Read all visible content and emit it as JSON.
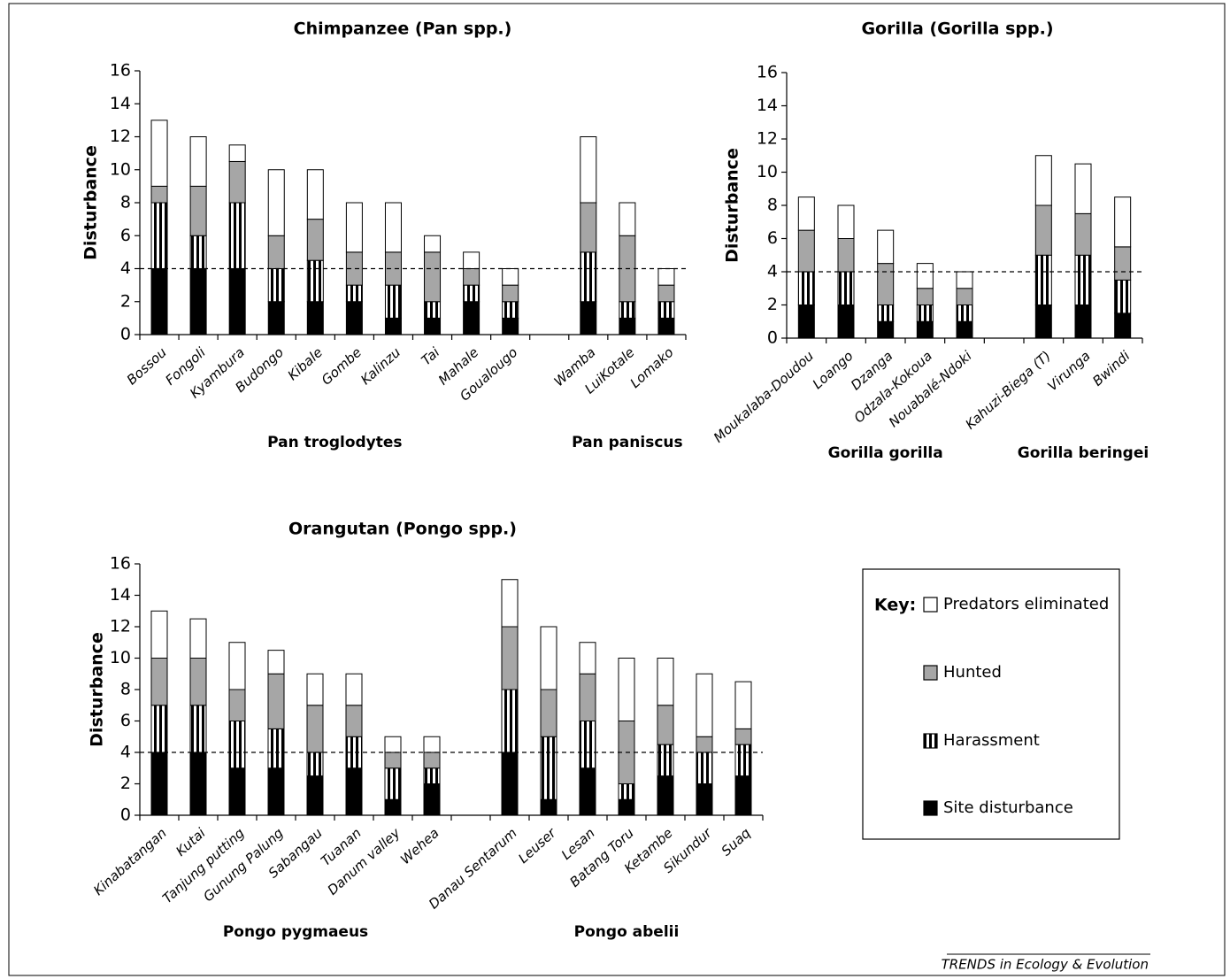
{
  "chart_data": [
    {
      "type": "bar",
      "stacked": true,
      "title": "Chimpanzee (Pan spp.)",
      "ylabel": "Disturbance",
      "categories": [
        "Bossou",
        "Fongoli",
        "Kyambura",
        "Budongo",
        "Kibale",
        "Gombe",
        "Kalinzu",
        "Tai",
        "Mahale",
        "Goualougo",
        null,
        "Wamba",
        "LuiKotale",
        "Lomako"
      ],
      "groups": [
        "Pan troglodytes",
        "Pan paniscus"
      ],
      "series": [
        {
          "values": [
            4,
            4,
            4,
            2,
            2,
            2,
            1,
            1,
            2,
            1,
            null,
            2,
            1,
            1
          ]
        },
        {
          "values": [
            4,
            2,
            4,
            2,
            2.5,
            1,
            2,
            1,
            1,
            1,
            null,
            3,
            1,
            1
          ]
        },
        {
          "values": [
            1,
            3,
            2.5,
            2,
            2.5,
            2,
            2,
            3,
            1,
            1,
            null,
            3,
            4,
            1
          ]
        },
        {
          "values": [
            4,
            3,
            1,
            4,
            3,
            3,
            3,
            1,
            1,
            1,
            null,
            4,
            2,
            1
          ]
        }
      ],
      "reference_line": 4,
      "ylim": [
        0,
        16
      ],
      "yticks": [
        0,
        2,
        4,
        6,
        8,
        10,
        12,
        14,
        16
      ]
    },
    {
      "type": "bar",
      "stacked": true,
      "title": "Gorilla (Gorilla spp.)",
      "ylabel": "Disturbance",
      "categories": [
        "Moukalaba-Doudou",
        "Loango",
        "Dzanga",
        "Odzala-Kokoua",
        "Nouabalé-Ndoki",
        null,
        "Kahuzi-Biega (T)",
        "Virunga",
        "Bwindi"
      ],
      "groups": [
        "Gorilla gorilla",
        "Gorilla beringei"
      ],
      "series": [
        {
          "values": [
            2,
            2,
            1,
            1,
            1,
            null,
            2,
            2,
            1.5
          ]
        },
        {
          "values": [
            2,
            2,
            1,
            1,
            1,
            null,
            3,
            3,
            2
          ]
        },
        {
          "values": [
            2.5,
            2,
            2.5,
            1,
            1,
            null,
            3,
            2.5,
            2
          ]
        },
        {
          "values": [
            2,
            2,
            2,
            1.5,
            1,
            null,
            3,
            3,
            3
          ]
        }
      ],
      "reference_line": 4,
      "ylim": [
        0,
        16
      ],
      "yticks": [
        0,
        2,
        4,
        6,
        8,
        10,
        12,
        14,
        16
      ]
    },
    {
      "type": "bar",
      "stacked": true,
      "title": "Orangutan (Pongo spp.)",
      "ylabel": "Disturbance",
      "categories": [
        "Kinabatangan",
        "Kutai",
        "Tanjung putting",
        "Gunung Palung",
        "Sabangau",
        "Tuanan",
        "Danum valley",
        "Wehea",
        null,
        "Danau Sentarum",
        "Leuser",
        "Lesan",
        "Batang Toru",
        "Ketambe",
        "Sikundur",
        "Suaq"
      ],
      "groups": [
        "Pongo pygmaeus",
        "Pongo abelii"
      ],
      "series": [
        {
          "name": "Site disturbance",
          "color": "#000000",
          "values": [
            4,
            4,
            3,
            3,
            2.5,
            3,
            1,
            2,
            null,
            4,
            1,
            3,
            1,
            2.5,
            2,
            2.5
          ]
        },
        {
          "name": "Harassment",
          "color": "#000000",
          "pattern": "vertical-stripes",
          "values": [
            3,
            3,
            3,
            2.5,
            1.5,
            2,
            2,
            1,
            null,
            4,
            4,
            3,
            1,
            2,
            2,
            2
          ]
        },
        {
          "name": "Hunted",
          "color": "#a6a6a6",
          "values": [
            3,
            3,
            2,
            3.5,
            3,
            2,
            1,
            1,
            null,
            4,
            3,
            3,
            4,
            2.5,
            1,
            1
          ]
        },
        {
          "name": "Predators eliminated",
          "color": "#ffffff",
          "values": [
            3,
            2.5,
            3,
            1.5,
            2,
            2,
            1,
            1,
            null,
            3,
            4,
            2,
            4,
            3,
            4,
            3
          ]
        }
      ],
      "reference_line": 4,
      "ylim": [
        0,
        16
      ],
      "yticks": [
        0,
        2,
        4,
        6,
        8,
        10,
        12,
        14,
        16
      ]
    }
  ],
  "key": {
    "label": "Key:"
  },
  "source": "TRENDS in Ecology & Evolution"
}
